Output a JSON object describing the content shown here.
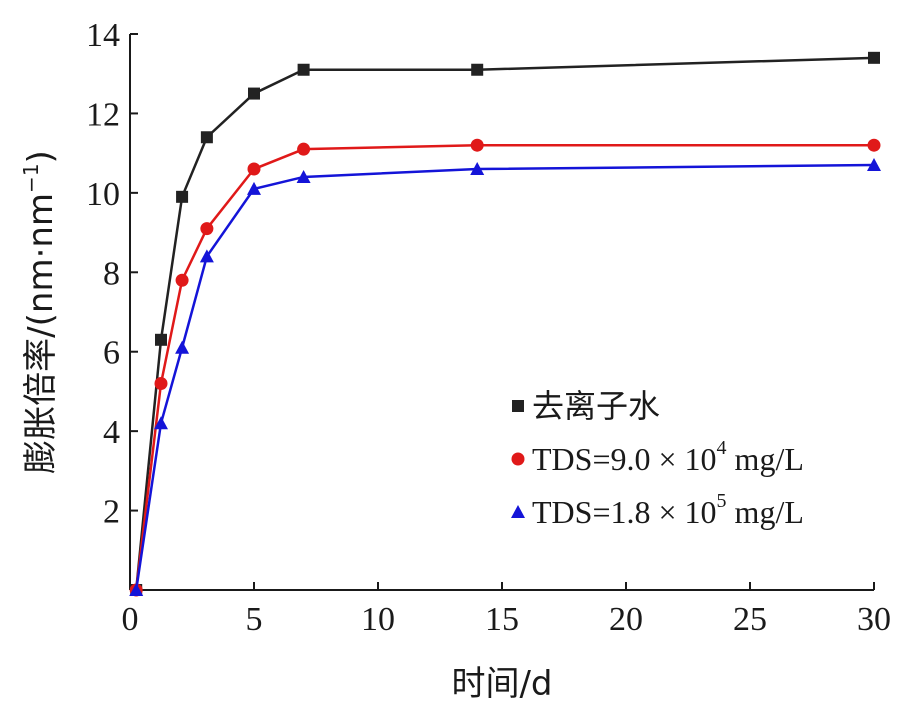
{
  "chart_data": {
    "type": "line",
    "xlabel": "时间/d",
    "ylabel_main": "膨胀倍率/(nm·nm",
    "ylabel_sup": "−1",
    "ylabel_close": ")",
    "xlim": [
      0,
      30
    ],
    "ylim": [
      0,
      14
    ],
    "xticks": [
      "0",
      "5",
      "10",
      "15",
      "20",
      "25",
      "30"
    ],
    "yticks": [
      "2",
      "4",
      "6",
      "8",
      "10",
      "12",
      "14"
    ],
    "grid": false,
    "legend_position": "lower-right",
    "x": [
      0.25,
      1.25,
      2.1,
      3.1,
      5,
      7,
      14,
      30
    ],
    "series": [
      {
        "name": "去离子水",
        "name_sup": "",
        "name_suffix": "",
        "color": "#222222",
        "marker": "square",
        "values": [
          0,
          6.3,
          9.9,
          11.4,
          12.5,
          13.1,
          13.1,
          13.4
        ]
      },
      {
        "name": "TDS=9.0 × 10",
        "name_sup": "4",
        "name_suffix": " mg/L",
        "color": "#e01919",
        "marker": "circle",
        "values": [
          0,
          5.2,
          7.8,
          9.1,
          10.6,
          11.1,
          11.2,
          11.2
        ]
      },
      {
        "name": "TDS=1.8 × 10",
        "name_sup": "5",
        "name_suffix": " mg/L",
        "color": "#1414d8",
        "marker": "triangle",
        "values": [
          0,
          4.2,
          6.1,
          8.4,
          10.1,
          10.4,
          10.6,
          10.7
        ]
      }
    ]
  }
}
